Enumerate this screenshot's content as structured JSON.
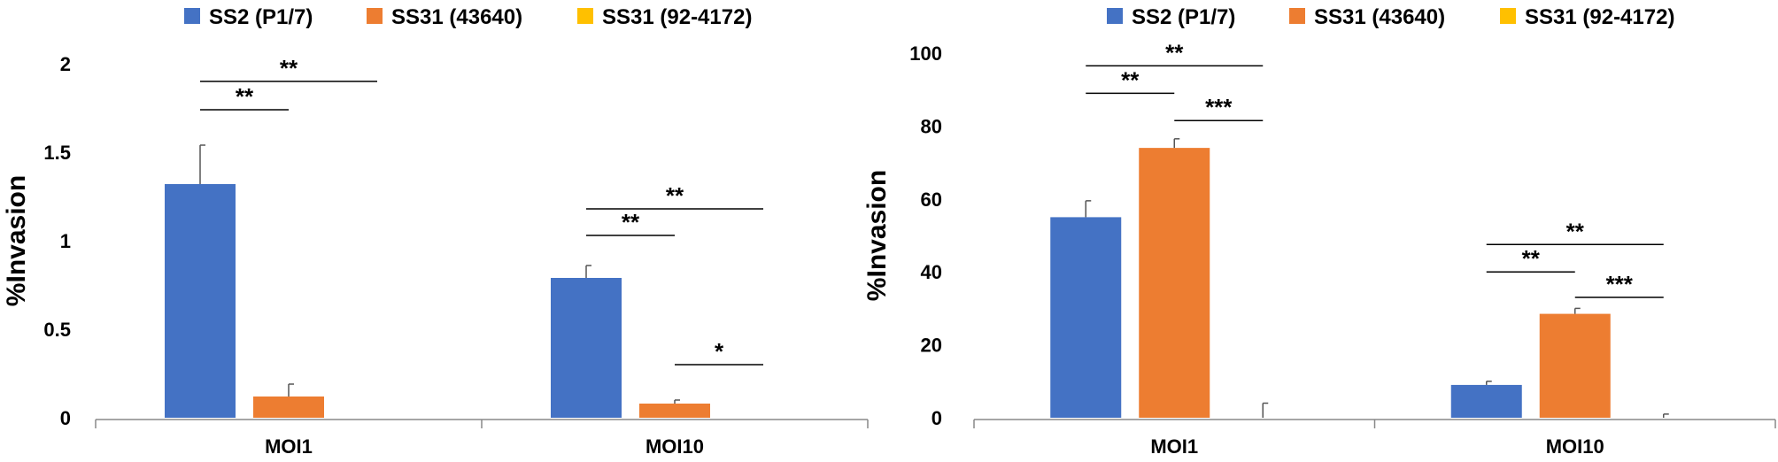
{
  "chart_data": [
    {
      "type": "bar",
      "title": "",
      "xlabel": "",
      "ylabel": "%Invasion",
      "ylim": [
        0,
        2
      ],
      "yticks": [
        "0",
        "0.5",
        "1",
        "1.5",
        "2"
      ],
      "ytick_values": [
        0,
        0.5,
        1,
        1.5,
        2
      ],
      "categories": [
        "MOI1",
        "MOI10"
      ],
      "legend_position": "top",
      "series": [
        {
          "name": "SS2 (P1/7)",
          "color": "#4472C4",
          "values": [
            1.32,
            0.79
          ],
          "errors": [
            0.22,
            0.07
          ]
        },
        {
          "name": "SS31 (43640)",
          "color": "#ED7D31",
          "values": [
            0.12,
            0.08
          ],
          "errors": [
            0.07,
            0.02
          ]
        },
        {
          "name": "SS31 (92-4172)",
          "color": "#FFC000",
          "values": [
            0,
            0
          ],
          "errors": [
            0,
            0
          ]
        }
      ],
      "significance": [
        {
          "category": 0,
          "from": 0,
          "to": 2,
          "label": "**",
          "y": 1.9
        },
        {
          "category": 0,
          "from": 0,
          "to": 1,
          "label": "**",
          "y": 1.74
        },
        {
          "category": 1,
          "from": 0,
          "to": 2,
          "label": "**",
          "y": 1.18
        },
        {
          "category": 1,
          "from": 0,
          "to": 1,
          "label": "**",
          "y": 1.03
        },
        {
          "category": 1,
          "from": 1,
          "to": 2,
          "label": "*",
          "y": 0.3
        }
      ]
    },
    {
      "type": "bar",
      "title": "",
      "xlabel": "",
      "ylabel": "%Invasion",
      "ylim": [
        0,
        100
      ],
      "yticks": [
        "0",
        "20",
        "40",
        "60",
        "80",
        "100"
      ],
      "ytick_values": [
        0,
        20,
        40,
        60,
        80,
        100
      ],
      "categories": [
        "MOI1",
        "MOI10"
      ],
      "legend_position": "top",
      "series": [
        {
          "name": "SS2 (P1/7)",
          "color": "#4472C4",
          "values": [
            55,
            9
          ],
          "errors": [
            4.5,
            1
          ]
        },
        {
          "name": "SS31 (43640)",
          "color": "#ED7D31",
          "values": [
            74,
            28.5
          ],
          "errors": [
            2.5,
            1.5
          ]
        },
        {
          "name": "SS31 (92-4172)",
          "color": "#FFC000",
          "values": [
            0,
            0
          ],
          "errors": [
            4,
            1
          ]
        }
      ],
      "significance": [
        {
          "category": 0,
          "from": 0,
          "to": 2,
          "label": "**",
          "y": 96.5
        },
        {
          "category": 0,
          "from": 0,
          "to": 1,
          "label": "**",
          "y": 89
        },
        {
          "category": 0,
          "from": 1,
          "to": 2,
          "label": "***",
          "y": 81.5
        },
        {
          "category": 1,
          "from": 0,
          "to": 2,
          "label": "**",
          "y": 47.5
        },
        {
          "category": 1,
          "from": 0,
          "to": 1,
          "label": "**",
          "y": 40
        },
        {
          "category": 1,
          "from": 1,
          "to": 2,
          "label": "***",
          "y": 33
        }
      ]
    }
  ]
}
